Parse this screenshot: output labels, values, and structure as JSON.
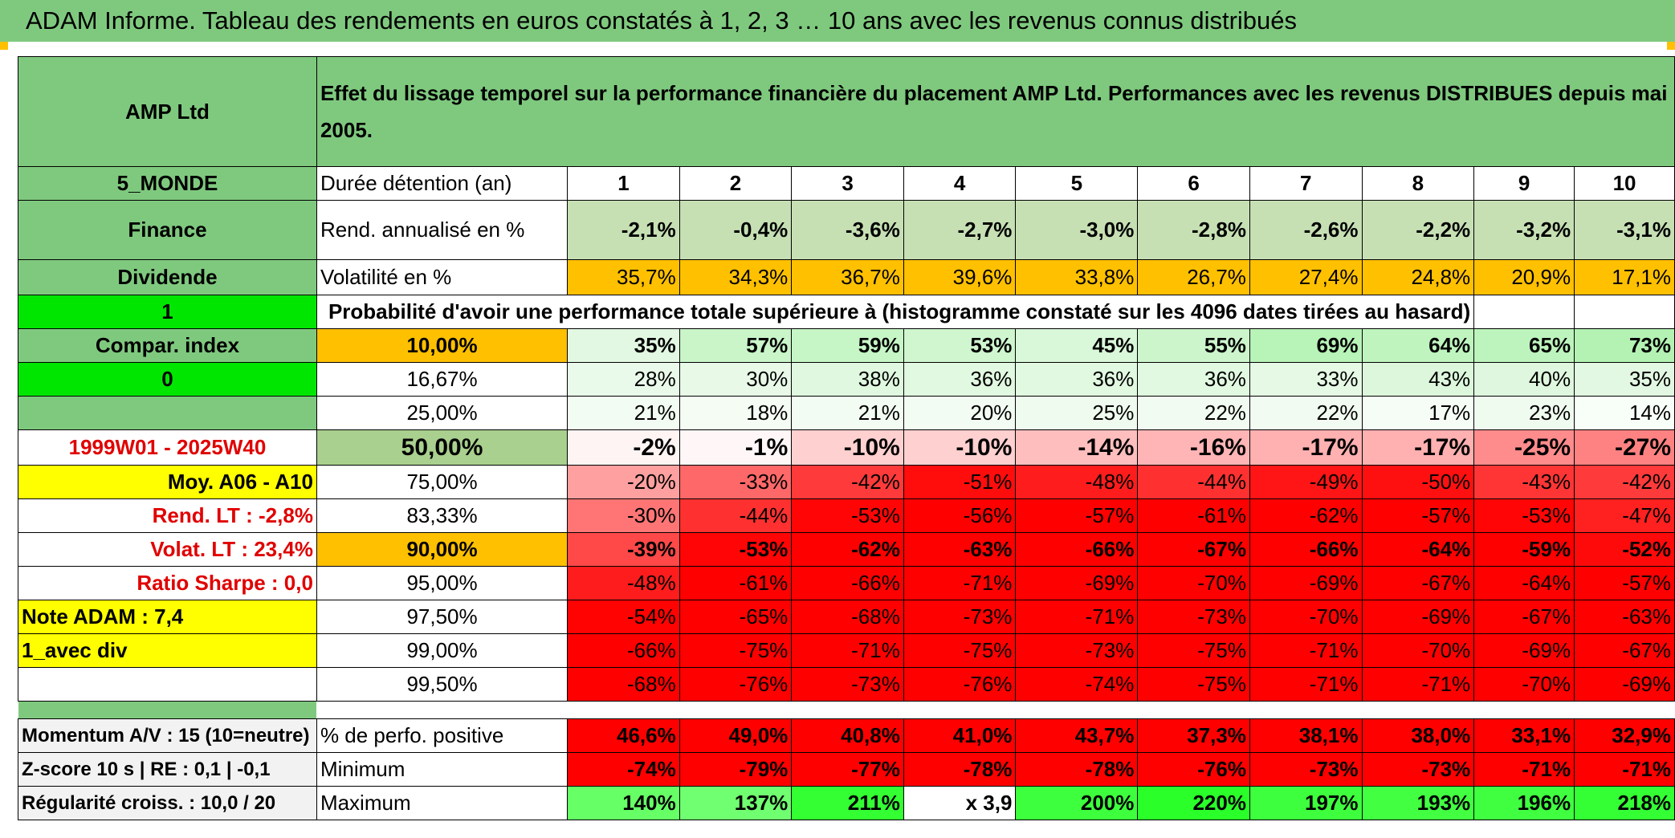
{
  "title": "ADAM Informe. Tableau des rendements en euros constatés à 1, 2, 3 … 10 ans avec les revenus connus distribués",
  "colors": {
    "header_green": "#7fc97f",
    "light_green": "#c6e0b4",
    "bright_green": "#00e600",
    "orange": "#ffc000",
    "yellow": "#ffff00",
    "red": "#ff0000",
    "red_text": "#e00000"
  },
  "header": {
    "fund": "AMP Ltd",
    "description": "Effet du lissage temporel sur la performance financière du placement AMP Ltd. Performances avec les revenus DISTRIBUES depuis mai 2005."
  },
  "left": {
    "category": "5_MONDE",
    "sector": "Finance",
    "type": "Dividende",
    "flag1": "1",
    "compar": "Compar. index",
    "flag2": "0",
    "period": "1999W01 - 2025W40",
    "moy": "Moy. A06 - A10",
    "rend_lt": "Rend. LT :    -2,8%",
    "volat_lt": "Volat. LT :   23,4%",
    "sharpe": "Ratio Sharpe :    0,0",
    "note": "Note ADAM : 7,4",
    "div": "1_avec div",
    "momentum": "Momentum A/V : 15 (10=neutre)",
    "zscore": "Z-score 10 s | RE : 0,1 | -0,1",
    "regularite": "Régularité croiss. : 10,0 / 20"
  },
  "labels": {
    "duree": "Durée détention (an)",
    "rend": "Rend. annualisé en %",
    "vol": "Volatilité en %",
    "proba": "Probabilité d'avoir une performance totale supérieure à (histogramme constaté sur les 4096 dates tirées au hasard)",
    "positive": "% de perfo. positive",
    "minimum": "Minimum",
    "maximum": "Maximum"
  },
  "years": [
    "1",
    "2",
    "3",
    "4",
    "5",
    "6",
    "7",
    "8",
    "9",
    "10"
  ],
  "rend": [
    "-2,1%",
    "-0,4%",
    "-3,6%",
    "-2,7%",
    "-3,0%",
    "-2,8%",
    "-2,6%",
    "-2,2%",
    "-3,2%",
    "-3,1%"
  ],
  "vol": [
    "35,7%",
    "34,3%",
    "36,7%",
    "39,6%",
    "33,8%",
    "26,7%",
    "27,4%",
    "24,8%",
    "20,9%",
    "17,1%"
  ],
  "percentiles": [
    {
      "p": "10,00%",
      "v": [
        "35%",
        "57%",
        "59%",
        "53%",
        "45%",
        "55%",
        "69%",
        "64%",
        "65%",
        "73%"
      ],
      "c": [
        "#e2f8e2",
        "#c9f5c9",
        "#c6f5c6",
        "#cff6cf",
        "#d9f7d9",
        "#ccf5cc",
        "#b8f3b8",
        "#bff4bf",
        "#bdf4bd",
        "#b3f2b3"
      ]
    },
    {
      "p": "16,67%",
      "v": [
        "28%",
        "30%",
        "38%",
        "36%",
        "36%",
        "36%",
        "33%",
        "43%",
        "40%",
        "35%"
      ],
      "c": [
        "#eafaea",
        "#e8f9e8",
        "#dff8df",
        "#e1f8e1",
        "#e1f8e1",
        "#e1f8e1",
        "#e5f9e5",
        "#dcf7dc",
        "#def7de",
        "#e2f8e2"
      ]
    },
    {
      "p": "25,00%",
      "v": [
        "21%",
        "18%",
        "21%",
        "20%",
        "25%",
        "22%",
        "22%",
        "17%",
        "23%",
        "14%"
      ],
      "c": [
        "#f2fcf2",
        "#f4fcf4",
        "#f2fcf2",
        "#f3fcf3",
        "#eefbee",
        "#f1fbf1",
        "#f1fbf1",
        "#f6fdf6",
        "#f0fbf0",
        "#f8fef8"
      ]
    },
    {
      "p": "50,00%",
      "v": [
        "-2%",
        "-1%",
        "-10%",
        "-10%",
        "-14%",
        "-16%",
        "-17%",
        "-17%",
        "-25%",
        "-27%"
      ],
      "c": [
        "#fff4f4",
        "#fff7f7",
        "#ffd0d0",
        "#ffd0d0",
        "#ffbebe",
        "#ffb5b5",
        "#ffb0b0",
        "#ffb0b0",
        "#ff8c8c",
        "#ff8282"
      ]
    },
    {
      "p": "75,00%",
      "v": [
        "-20%",
        "-33%",
        "-42%",
        "-51%",
        "-48%",
        "-44%",
        "-49%",
        "-50%",
        "-43%",
        "-42%"
      ],
      "c": [
        "#ffa0a0",
        "#ff6868",
        "#ff3a3a",
        "#ff0d0d",
        "#ff1c1c",
        "#ff3030",
        "#ff1515",
        "#ff1010",
        "#ff3535",
        "#ff3a3a"
      ]
    },
    {
      "p": "83,33%",
      "v": [
        "-30%",
        "-44%",
        "-53%",
        "-56%",
        "-57%",
        "-61%",
        "-62%",
        "-57%",
        "-53%",
        "-47%"
      ],
      "c": [
        "#ff7575",
        "#ff3030",
        "#ff0505",
        "#ff0000",
        "#ff0000",
        "#ff0000",
        "#ff0000",
        "#ff0000",
        "#ff0505",
        "#ff2020"
      ]
    },
    {
      "p": "90,00%",
      "v": [
        "-39%",
        "-53%",
        "-62%",
        "-63%",
        "-66%",
        "-67%",
        "-66%",
        "-64%",
        "-59%",
        "-52%"
      ],
      "c": [
        "#ff4848",
        "#ff0505",
        "#ff0000",
        "#ff0000",
        "#ff0000",
        "#ff0000",
        "#ff0000",
        "#ff0000",
        "#ff0000",
        "#ff0a0a"
      ]
    },
    {
      "p": "95,00%",
      "v": [
        "-48%",
        "-61%",
        "-66%",
        "-71%",
        "-69%",
        "-70%",
        "-69%",
        "-67%",
        "-64%",
        "-57%"
      ],
      "c": [
        "#ff1c1c",
        "#ff0000",
        "#ff0000",
        "#ff0000",
        "#ff0000",
        "#ff0000",
        "#ff0000",
        "#ff0000",
        "#ff0000",
        "#ff0000"
      ]
    },
    {
      "p": "97,50%",
      "v": [
        "-54%",
        "-65%",
        "-68%",
        "-73%",
        "-71%",
        "-73%",
        "-70%",
        "-69%",
        "-67%",
        "-63%"
      ],
      "c": [
        "#ff0202",
        "#ff0000",
        "#ff0000",
        "#ff0000",
        "#ff0000",
        "#ff0000",
        "#ff0000",
        "#ff0000",
        "#ff0000",
        "#ff0000"
      ]
    },
    {
      "p": "99,00%",
      "v": [
        "-66%",
        "-75%",
        "-71%",
        "-75%",
        "-73%",
        "-75%",
        "-71%",
        "-70%",
        "-69%",
        "-67%"
      ],
      "c": [
        "#ff0000",
        "#ff0000",
        "#ff0000",
        "#ff0000",
        "#ff0000",
        "#ff0000",
        "#ff0000",
        "#ff0000",
        "#ff0000",
        "#ff0000"
      ]
    },
    {
      "p": "99,50%",
      "v": [
        "-68%",
        "-76%",
        "-73%",
        "-76%",
        "-74%",
        "-75%",
        "-71%",
        "-71%",
        "-70%",
        "-69%"
      ],
      "c": [
        "#ff0000",
        "#ff0000",
        "#ff0000",
        "#ff0000",
        "#ff0000",
        "#ff0000",
        "#ff0000",
        "#ff0000",
        "#ff0000",
        "#ff0000"
      ]
    }
  ],
  "positive": [
    "46,6%",
    "49,0%",
    "40,8%",
    "41,0%",
    "43,7%",
    "37,3%",
    "38,1%",
    "38,0%",
    "33,1%",
    "32,9%"
  ],
  "minimum": [
    "-74%",
    "-79%",
    "-77%",
    "-78%",
    "-78%",
    "-76%",
    "-73%",
    "-73%",
    "-71%",
    "-71%"
  ],
  "maximum": [
    "140%",
    "137%",
    "211%",
    "x 3,9",
    "200%",
    "220%",
    "197%",
    "193%",
    "196%",
    "218%"
  ],
  "maximum_colors": [
    "#66ff66",
    "#70ff70",
    "#33ff33",
    "#ffffff",
    "#3dff3d",
    "#2aff2a",
    "#3eff3e",
    "#42ff42",
    "#40ff40",
    "#34ff34"
  ]
}
